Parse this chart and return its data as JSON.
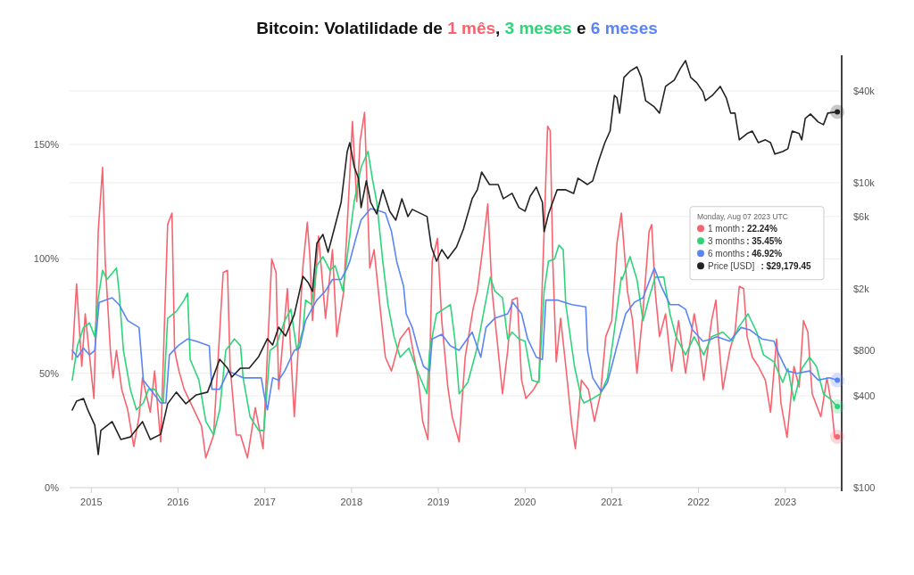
{
  "chart_data": {
    "type": "line",
    "title": "Bitcoin: Volatilidade de 1 mês, 3 meses e 6 meses",
    "xlim": [
      2014.75,
      2023.64
    ],
    "xticks": [
      2015,
      2016,
      2017,
      2018,
      2019,
      2020,
      2021,
      2022,
      2023
    ],
    "ylim": [
      0,
      189
    ],
    "yticks": [
      {
        "value": 0,
        "label": "0%"
      },
      {
        "value": 50,
        "label": "50%"
      },
      {
        "value": 100,
        "label": "100%"
      },
      {
        "value": 150,
        "label": "150%"
      }
    ],
    "y2lim": [
      100,
      68500
    ],
    "y2ticks": [
      {
        "value": 100,
        "label": "$100"
      },
      {
        "value": 400,
        "label": "$400"
      },
      {
        "value": 800,
        "label": "$800"
      },
      {
        "value": 2000,
        "label": "$2k"
      },
      {
        "value": 6000,
        "label": "$6k"
      },
      {
        "value": 10000,
        "label": "$10k"
      },
      {
        "value": 40000,
        "label": "$40k"
      }
    ],
    "log": "y2",
    "grid": "y",
    "legend": "right",
    "series": [
      {
        "name": "1 month",
        "color": "#f7636e",
        "x": [
          2014.78,
          2014.83,
          2014.89,
          2014.93,
          2015.03,
          2015.08,
          2015.13,
          2015.16,
          2015.22,
          2015.25,
          2015.29,
          2015.35,
          2015.42,
          2015.49,
          2015.55,
          2015.59,
          2015.68,
          2015.73,
          2015.8,
          2015.88,
          2015.93,
          2015.96,
          2016.01,
          2016.07,
          2016.17,
          2016.27,
          2016.32,
          2016.41,
          2016.52,
          2016.57,
          2016.6,
          2016.67,
          2016.72,
          2016.8,
          2016.89,
          2016.98,
          2017.08,
          2017.13,
          2017.16,
          2017.26,
          2017.34,
          2017.44,
          2017.49,
          2017.52,
          2017.55,
          2017.62,
          2017.7,
          2017.78,
          2017.83,
          2017.91,
          2017.96,
          2018.01,
          2018.06,
          2018.1,
          2018.15,
          2018.21,
          2018.26,
          2018.32,
          2018.39,
          2018.46,
          2018.56,
          2018.66,
          2018.77,
          2018.82,
          2018.88,
          2018.93,
          2018.99,
          2019.04,
          2019.11,
          2019.16,
          2019.24,
          2019.31,
          2019.4,
          2019.45,
          2019.52,
          2019.57,
          2019.62,
          2019.69,
          2019.74,
          2019.8,
          2019.85,
          2019.91,
          2019.96,
          2020.01,
          2020.1,
          2020.16,
          2020.22,
          2020.26,
          2020.29,
          2020.32,
          2020.36,
          2020.41,
          2020.47,
          2020.54,
          2020.58,
          2020.65,
          2020.73,
          2020.8,
          2020.87,
          2020.93,
          2021.0,
          2021.06,
          2021.11,
          2021.18,
          2021.24,
          2021.29,
          2021.36,
          2021.43,
          2021.46,
          2021.5,
          2021.55,
          2021.62,
          2021.69,
          2021.77,
          2021.85,
          2021.95,
          2022.0,
          2022.06,
          2022.15,
          2022.2,
          2022.23,
          2022.28,
          2022.36,
          2022.42,
          2022.47,
          2022.52,
          2022.56,
          2022.62,
          2022.69,
          2022.77,
          2022.83,
          2022.9,
          2022.95,
          2023.02,
          2023.1,
          2023.16,
          2023.21,
          2023.26,
          2023.31,
          2023.41,
          2023.48,
          2023.53,
          2023.57,
          2023.6
        ],
        "values": [
          56,
          89,
          53,
          76,
          39,
          112,
          140,
          99,
          60,
          48,
          60,
          43,
          34,
          18,
          31,
          48,
          33,
          51,
          20,
          115,
          120,
          60,
          51,
          43,
          35,
          27,
          13,
          23,
          94,
          95,
          53,
          23,
          23,
          13,
          35,
          17,
          100,
          94,
          43,
          87,
          31,
          97,
          116,
          101,
          73,
          110,
          74,
          104,
          66,
          86,
          122,
          160,
          125,
          152,
          164,
          96,
          104,
          82,
          57,
          51,
          65,
          70,
          47,
          29,
          21,
          99,
          109,
          73,
          44,
          31,
          20,
          57,
          78,
          86,
          107,
          124,
          86,
          60,
          41,
          60,
          82,
          83,
          47,
          39,
          43,
          47,
          112,
          158,
          156,
          99,
          55,
          74,
          53,
          27,
          17,
          47,
          43,
          29,
          41,
          66,
          73,
          107,
          120,
          86,
          73,
          50,
          77,
          112,
          115,
          86,
          66,
          76,
          51,
          73,
          50,
          76,
          65,
          47,
          73,
          82,
          65,
          43,
          60,
          68,
          88,
          87,
          66,
          57,
          53,
          47,
          33,
          65,
          37,
          22,
          53,
          44,
          73,
          68,
          41,
          31,
          48,
          37,
          22,
          22.24
        ]
      },
      {
        "name": "3 months",
        "color": "#2ed47a",
        "x": [
          2014.78,
          2014.84,
          2014.91,
          2014.98,
          2015.04,
          2015.08,
          2015.13,
          2015.18,
          2015.29,
          2015.32,
          2015.37,
          2015.45,
          2015.52,
          2015.6,
          2015.66,
          2015.73,
          2015.83,
          2015.88,
          2015.98,
          2016.07,
          2016.11,
          2016.14,
          2016.24,
          2016.32,
          2016.41,
          2016.48,
          2016.55,
          2016.65,
          2016.72,
          2016.75,
          2016.83,
          2016.93,
          2016.99,
          2017.06,
          2017.13,
          2017.23,
          2017.3,
          2017.37,
          2017.44,
          2017.47,
          2017.54,
          2017.6,
          2017.67,
          2017.75,
          2017.81,
          2017.9,
          2017.96,
          2018.03,
          2018.11,
          2018.19,
          2018.24,
          2018.29,
          2018.36,
          2018.42,
          2018.49,
          2018.56,
          2018.66,
          2018.77,
          2018.87,
          2018.9,
          2018.98,
          2019.06,
          2019.14,
          2019.19,
          2019.24,
          2019.34,
          2019.44,
          2019.52,
          2019.6,
          2019.65,
          2019.74,
          2019.8,
          2019.85,
          2019.93,
          2020.0,
          2020.08,
          2020.16,
          2020.22,
          2020.27,
          2020.34,
          2020.39,
          2020.44,
          2020.47,
          2020.57,
          2020.65,
          2020.68,
          2020.78,
          2020.87,
          2020.95,
          2021.02,
          2021.11,
          2021.12,
          2021.21,
          2021.29,
          2021.36,
          2021.43,
          2021.5,
          2021.6,
          2021.67,
          2021.74,
          2021.85,
          2021.95,
          2022.06,
          2022.15,
          2022.28,
          2022.39,
          2022.46,
          2022.57,
          2022.67,
          2022.75,
          2022.87,
          2022.97,
          2023.03,
          2023.1,
          2023.19,
          2023.28,
          2023.36,
          2023.44,
          2023.51,
          2023.6
        ],
        "values": [
          47,
          62,
          70,
          72,
          66,
          83,
          95,
          91,
          96,
          86,
          60,
          43,
          34,
          37,
          43,
          43,
          37,
          74,
          77,
          82,
          85,
          56,
          47,
          29,
          23,
          34,
          60,
          65,
          62,
          48,
          31,
          25,
          25,
          60,
          62,
          73,
          78,
          60,
          69,
          82,
          80,
          97,
          101,
          95,
          97,
          86,
          104,
          125,
          140,
          147,
          135,
          125,
          99,
          80,
          66,
          57,
          61,
          50,
          41,
          60,
          76,
          78,
          80,
          65,
          41,
          46,
          60,
          76,
          92,
          86,
          83,
          65,
          68,
          65,
          64,
          47,
          46,
          86,
          99,
          100,
          106,
          104,
          80,
          53,
          39,
          37,
          39,
          41,
          48,
          66,
          92,
          91,
          101,
          91,
          73,
          83,
          92,
          92,
          76,
          66,
          58,
          66,
          58,
          66,
          68,
          64,
          70,
          76,
          68,
          58,
          55,
          46,
          52,
          38,
          52,
          57,
          53,
          41,
          39,
          35.45
        ]
      },
      {
        "name": "6 months",
        "color": "#5b84f5",
        "x": [
          2014.78,
          2014.84,
          2014.91,
          2014.98,
          2015.04,
          2015.09,
          2015.24,
          2015.32,
          2015.42,
          2015.55,
          2015.6,
          2015.7,
          2015.8,
          2015.86,
          2015.9,
          2016.0,
          2016.11,
          2016.21,
          2016.36,
          2016.39,
          2016.48,
          2016.58,
          2016.75,
          2016.96,
          2016.99,
          2017.03,
          2017.09,
          2017.16,
          2017.23,
          2017.34,
          2017.4,
          2017.47,
          2017.54,
          2017.6,
          2017.7,
          2017.78,
          2017.88,
          2017.95,
          2017.98,
          2018.05,
          2018.11,
          2018.22,
          2018.32,
          2018.39,
          2018.46,
          2018.52,
          2018.6,
          2018.63,
          2018.7,
          2018.77,
          2018.83,
          2018.9,
          2018.93,
          2019.04,
          2019.14,
          2019.24,
          2019.39,
          2019.49,
          2019.55,
          2019.65,
          2019.8,
          2019.86,
          2019.96,
          2020.03,
          2020.13,
          2020.2,
          2020.24,
          2020.37,
          2020.54,
          2020.7,
          2020.72,
          2020.78,
          2020.88,
          2020.95,
          2021.02,
          2021.06,
          2021.16,
          2021.26,
          2021.36,
          2021.49,
          2021.57,
          2021.67,
          2021.77,
          2021.85,
          2021.93,
          2022.05,
          2022.15,
          2022.21,
          2022.36,
          2022.49,
          2022.59,
          2022.73,
          2022.87,
          2022.93,
          2023.02,
          2023.14,
          2023.28,
          2023.38,
          2023.51,
          2023.6
        ],
        "values": [
          60,
          57,
          61,
          58,
          60,
          81,
          83,
          80,
          73,
          70,
          47,
          42,
          37,
          37,
          58,
          62,
          65,
          64,
          62,
          43,
          43,
          51,
          48,
          48,
          41,
          34,
          48,
          47,
          51,
          60,
          61,
          73,
          78,
          82,
          86,
          91,
          91,
          96,
          99,
          109,
          117,
          122,
          121,
          120,
          112,
          99,
          88,
          76,
          70,
          60,
          53,
          51,
          65,
          67,
          62,
          60,
          68,
          57,
          70,
          74,
          76,
          81,
          76,
          65,
          57,
          56,
          82,
          82,
          80,
          79,
          60,
          48,
          42,
          46,
          56,
          62,
          76,
          81,
          83,
          96,
          88,
          80,
          80,
          78,
          69,
          64,
          65,
          66,
          64,
          70,
          69,
          65,
          64,
          58,
          51,
          50,
          51,
          47,
          48,
          46.92
        ]
      },
      {
        "name": "Price [USD]",
        "color": "#222222",
        "axis": "y2",
        "x": [
          2014.78,
          2014.83,
          2014.91,
          2014.96,
          2015.04,
          2015.08,
          2015.11,
          2015.24,
          2015.34,
          2015.45,
          2015.59,
          2015.68,
          2015.8,
          2015.88,
          2015.98,
          2016.09,
          2016.21,
          2016.34,
          2016.48,
          2016.57,
          2016.62,
          2016.72,
          2016.82,
          2016.93,
          2017.03,
          2017.09,
          2017.16,
          2017.24,
          2017.34,
          2017.44,
          2017.5,
          2017.55,
          2017.6,
          2017.67,
          2017.73,
          2017.8,
          2017.88,
          2017.95,
          2017.98,
          2018.03,
          2018.08,
          2018.11,
          2018.17,
          2018.22,
          2018.29,
          2018.36,
          2018.44,
          2018.51,
          2018.58,
          2018.65,
          2018.7,
          2018.87,
          2018.92,
          2018.98,
          2019.04,
          2019.11,
          2019.21,
          2019.29,
          2019.39,
          2019.45,
          2019.5,
          2019.59,
          2019.69,
          2019.75,
          2019.85,
          2019.93,
          2020.0,
          2020.06,
          2020.13,
          2020.2,
          2020.22,
          2020.27,
          2020.37,
          2020.47,
          2020.56,
          2020.61,
          2020.72,
          2020.78,
          2020.85,
          2020.92,
          2020.98,
          2021.03,
          2021.06,
          2021.09,
          2021.14,
          2021.21,
          2021.29,
          2021.34,
          2021.39,
          2021.49,
          2021.55,
          2021.62,
          2021.72,
          2021.79,
          2021.85,
          2021.91,
          2021.98,
          2022.05,
          2022.08,
          2022.16,
          2022.25,
          2022.32,
          2022.37,
          2022.42,
          2022.47,
          2022.56,
          2022.62,
          2022.69,
          2022.77,
          2022.83,
          2022.88,
          2022.97,
          2023.03,
          2023.08,
          2023.16,
          2023.19,
          2023.23,
          2023.29,
          2023.38,
          2023.44,
          2023.49,
          2023.6
        ],
        "values": [
          323,
          369,
          384,
          323,
          257,
          165,
          237,
          271,
          207,
          215,
          271,
          207,
          224,
          355,
          423,
          355,
          406,
          423,
          695,
          608,
          531,
          608,
          608,
          724,
          948,
          862,
          1130,
          986,
          1364,
          2432,
          2213,
          1936,
          4000,
          4580,
          3500,
          4965,
          7430,
          16000,
          18300,
          12740,
          10700,
          6860,
          10280,
          7430,
          6240,
          8980,
          6500,
          5680,
          7850,
          6000,
          6680,
          6000,
          3790,
          3055,
          3640,
          3180,
          3790,
          4965,
          7850,
          8980,
          11750,
          9730,
          9730,
          7850,
          8510,
          6860,
          6500,
          8170,
          9350,
          7430,
          4770,
          6240,
          8980,
          8980,
          8510,
          10700,
          9730,
          10280,
          14000,
          18300,
          21800,
          37400,
          36000,
          28600,
          49000,
          53800,
          57500,
          49000,
          34500,
          31400,
          28600,
          42800,
          47100,
          56100,
          63200,
          49000,
          45200,
          39500,
          34500,
          37400,
          42800,
          36000,
          28600,
          28600,
          19100,
          21000,
          21800,
          18300,
          19100,
          18300,
          15400,
          16000,
          16700,
          21800,
          21000,
          19100,
          26400,
          28200,
          25000,
          24000,
          28600,
          29179.45
        ]
      }
    ],
    "annotations": [
      "Monday, Aug 07 2023 UTC",
      ": 22.24%",
      ": 35.45%",
      ": 46.92%",
      ": $29,179.45"
    ]
  }
}
